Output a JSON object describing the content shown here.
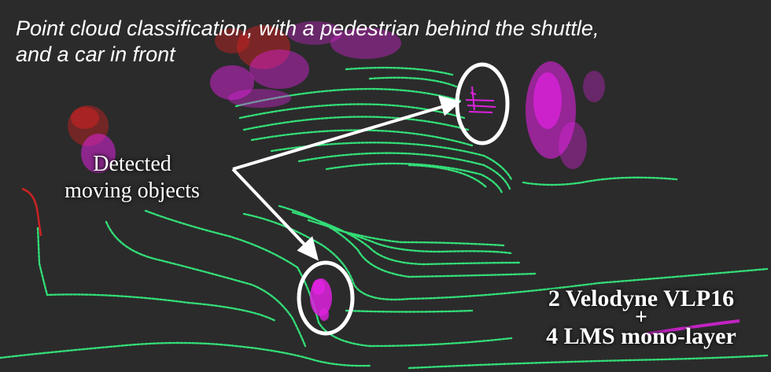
{
  "caption": {
    "line1": "Point cloud classification, with a pedestrian behind the shuttle,",
    "line2": "and a car in front"
  },
  "callout": {
    "line1": "Detected",
    "line2": "moving objects"
  },
  "sensors": {
    "line1": "2 Velodyne VLP16",
    "plus": "+",
    "line2": "4 LMS mono-layer"
  },
  "colors": {
    "background": "#2b2b2b",
    "ground_points": "#33dd77",
    "object_points": "#dd22dd",
    "static_points": "#cc2222",
    "annotation": "#ffffff"
  }
}
